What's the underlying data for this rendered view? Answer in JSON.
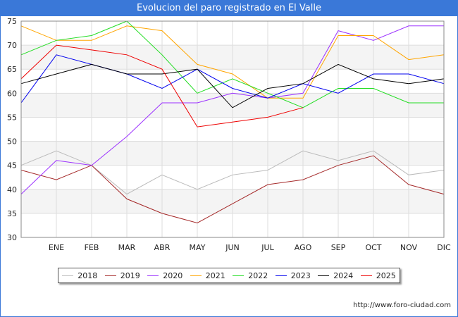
{
  "header": {
    "title": "Evolucion del paro registrado en El Valle"
  },
  "footer": {
    "source": "http://www.foro-ciudad.com"
  },
  "chart_data": {
    "type": "line",
    "title": "Evolucion del paro registrado en El Valle",
    "xlabel": "",
    "ylabel": "",
    "categories": [
      "",
      "ENE",
      "FEB",
      "MAR",
      "ABR",
      "MAY",
      "JUN",
      "JUL",
      "AGO",
      "SEP",
      "OCT",
      "NOV",
      "DIC"
    ],
    "ylim": [
      30,
      75
    ],
    "yticks": [
      30,
      35,
      40,
      45,
      50,
      55,
      60,
      65,
      70,
      75
    ],
    "grid": true,
    "legend_position": "bottom",
    "series": [
      {
        "name": "2018",
        "color": "#bbbbbb",
        "values": [
          45,
          48,
          45,
          39,
          43,
          40,
          43,
          44,
          48,
          46,
          48,
          43,
          44
        ]
      },
      {
        "name": "2019",
        "color": "#a52a2a",
        "values": [
          44,
          42,
          45,
          38,
          35,
          33,
          37,
          41,
          42,
          45,
          47,
          41,
          39
        ]
      },
      {
        "name": "2020",
        "color": "#9b30ff",
        "values": [
          39,
          46,
          45,
          51,
          58,
          58,
          60,
          59,
          60,
          73,
          71,
          74,
          74
        ]
      },
      {
        "name": "2021",
        "color": "#ffa500",
        "values": [
          74,
          71,
          71,
          74,
          73,
          66,
          64,
          59,
          59,
          72,
          72,
          67,
          68
        ]
      },
      {
        "name": "2022",
        "color": "#22dd22",
        "values": [
          68,
          71,
          72,
          75,
          68,
          60,
          63,
          60,
          57,
          61,
          61,
          58,
          58
        ]
      },
      {
        "name": "2023",
        "color": "#0000ee",
        "values": [
          58,
          68,
          66,
          64,
          61,
          65,
          61,
          59,
          62,
          60,
          64,
          64,
          62
        ]
      },
      {
        "name": "2024",
        "color": "#000000",
        "values": [
          62,
          64,
          66,
          64,
          64,
          65,
          57,
          61,
          62,
          66,
          63,
          62,
          63
        ]
      },
      {
        "name": "2025",
        "color": "#ee0000",
        "values": [
          63,
          70,
          69,
          68,
          65,
          53,
          54,
          55,
          57,
          null,
          null,
          null,
          null
        ]
      }
    ]
  }
}
